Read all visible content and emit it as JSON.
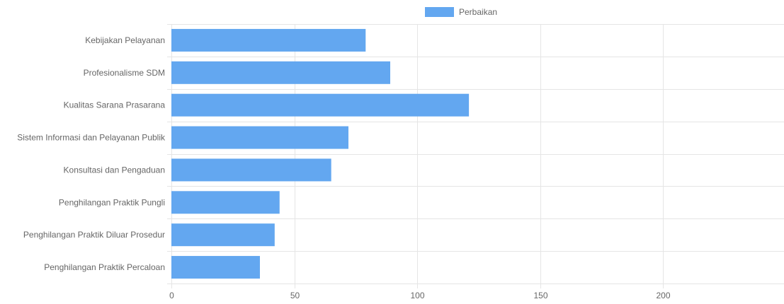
{
  "chart_data": {
    "type": "bar",
    "orientation": "horizontal",
    "categories": [
      "Kebijakan Pelayanan",
      "Profesionalisme SDM",
      "Kualitas Sarana Prasarana",
      "Sistem Informasi dan Pelayanan Publik",
      "Konsultasi dan Pengaduan",
      "Penghilangan Praktik Pungli",
      "Penghilangan Praktik Diluar Prosedur",
      "Penghilangan Praktik Percaloan"
    ],
    "series": [
      {
        "name": "Perbaikan",
        "color": "#63a7f0",
        "values": [
          79,
          89,
          121,
          72,
          65,
          44,
          42,
          36
        ]
      }
    ],
    "x_ticks": [
      "0",
      "50",
      "100",
      "150",
      "200"
    ],
    "xlim": [
      0,
      250
    ],
    "legend_position": "top-center",
    "grid": true
  }
}
